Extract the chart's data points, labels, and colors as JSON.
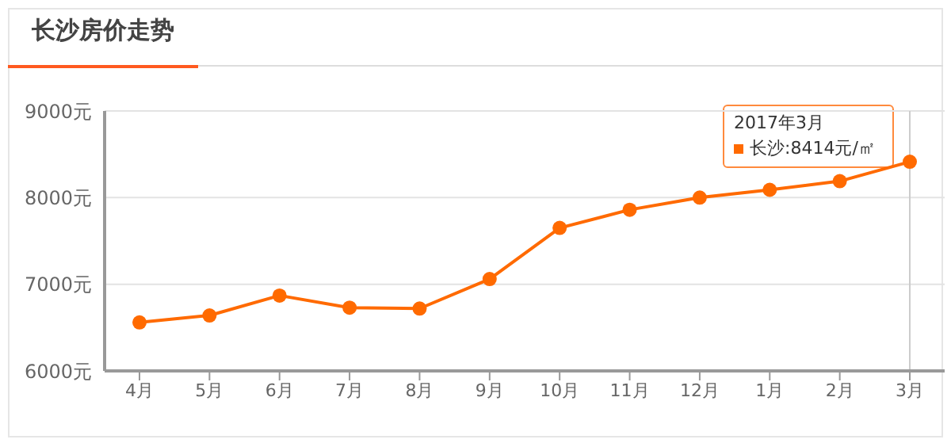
{
  "chart_data": {
    "type": "line",
    "title": "长沙房价走势",
    "categories": [
      "4月",
      "5月",
      "6月",
      "7月",
      "8月",
      "9月",
      "10月",
      "11月",
      "12月",
      "1月",
      "2月",
      "3月"
    ],
    "series": [
      {
        "color": "#ff6a00",
        "values": [
          6560,
          6640,
          6870,
          6730,
          6720,
          7060,
          7650,
          7860,
          8000,
          8090,
          8190,
          8414
        ]
      }
    ],
    "ylim": [
      6000,
      9000
    ],
    "yticks": [
      {
        "value": 6000,
        "label": "6000元"
      },
      {
        "value": 7000,
        "label": "7000元"
      },
      {
        "value": 8000,
        "label": "8000元"
      },
      {
        "value": 9000,
        "label": "9000元"
      }
    ],
    "grid": "y",
    "marker": "circle",
    "line_style": "solid",
    "ref_lines": [
      {
        "axis": "x",
        "value": "3月",
        "color": "#cccccc"
      }
    ],
    "annotations": [
      "2017年3月",
      "长沙:8414元/㎡"
    ]
  }
}
